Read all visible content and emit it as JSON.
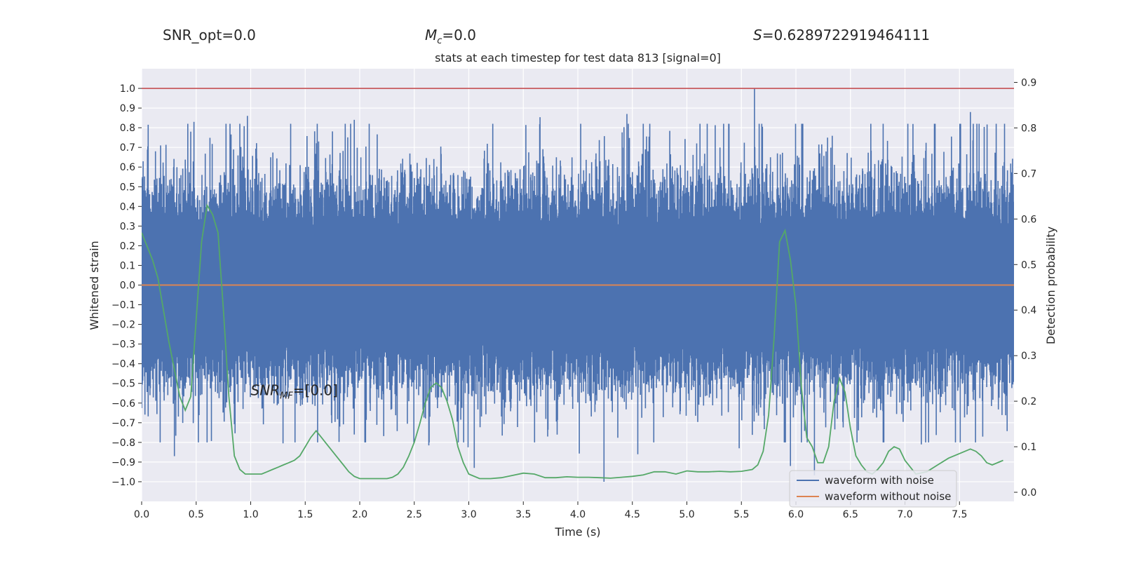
{
  "header": {
    "snr_opt": "SNR_opt=0.0",
    "mc_symbol": "M",
    "mc_sub": "c",
    "mc_value": "=0.0",
    "s_symbol": "S",
    "s_value": "=0.6289722919464111"
  },
  "colors": {
    "noisy": "#4c72b0",
    "clean": "#dd8452",
    "prob": "#55a868",
    "threshold": "#c44e52",
    "plot_bg": "#eaeaf2",
    "grid": "#ffffff"
  },
  "chart_data": {
    "type": "line",
    "title": "stats at each timestep for test data 813 [signal=0]",
    "xlabel": "Time (s)",
    "ylabel": "Whitened strain",
    "y2label": "Detection probability",
    "xlim": [
      0.0,
      8.0
    ],
    "ylim": [
      -1.1,
      1.1
    ],
    "y2lim": [
      -0.02,
      0.93
    ],
    "xticks": [
      0.0,
      0.5,
      1.0,
      1.5,
      2.0,
      2.5,
      3.0,
      3.5,
      4.0,
      4.5,
      5.0,
      5.5,
      6.0,
      6.5,
      7.0,
      7.5
    ],
    "xtick_labels": [
      "0.0",
      "0.5",
      "1.0",
      "1.5",
      "2.0",
      "2.5",
      "3.0",
      "3.5",
      "4.0",
      "4.5",
      "5.0",
      "5.5",
      "6.0",
      "6.5",
      "7.0",
      "7.5"
    ],
    "yticks": [
      1.0,
      0.9,
      0.8,
      0.7,
      0.6,
      0.5,
      0.4,
      0.3,
      0.2,
      0.1,
      0.0,
      -0.1,
      -0.2,
      -0.3,
      -0.4,
      -0.5,
      -0.6,
      -0.7,
      -0.8,
      -0.9,
      -1.0
    ],
    "ytick_labels": [
      "1.0",
      "0.9",
      "0.8",
      "0.7",
      "0.6",
      "0.5",
      "0.4",
      "0.3",
      "0.2",
      "0.1",
      "0.0",
      "−0.1",
      "−0.2",
      "−0.3",
      "−0.4",
      "−0.5",
      "−0.6",
      "−0.7",
      "−0.8",
      "−0.9",
      "−1.0"
    ],
    "y2ticks": [
      0.9,
      0.8,
      0.7,
      0.6,
      0.5,
      0.4,
      0.3,
      0.2,
      0.1,
      0.0
    ],
    "y2tick_labels": [
      "0.9",
      "0.8",
      "0.7",
      "0.6",
      "0.5",
      "0.4",
      "0.3",
      "0.2",
      "0.1",
      "0.0"
    ],
    "grid": true,
    "legend": {
      "placement": "lower right",
      "entries": [
        "waveform with noise",
        "waveform without noise"
      ]
    },
    "annotation": {
      "text_main": "SNR",
      "text_sub": "MF",
      "text_tail": "=[0.0]",
      "x": 1.0,
      "y": -0.56
    },
    "threshold": 1.0,
    "series": [
      {
        "name": "waveform with noise",
        "axis": "left",
        "kind": "noise",
        "x_start": 0.0,
        "x_end": 8.0,
        "typical_amplitude": 0.45,
        "peak_max": 1.0,
        "peak_min": -1.0,
        "notable_spikes": [
          {
            "x": 0.45,
            "y": 0.78
          },
          {
            "x": 0.48,
            "y": 0.83
          },
          {
            "x": 0.3,
            "y": -0.87
          },
          {
            "x": 0.97,
            "y": 0.86
          },
          {
            "x": 1.95,
            "y": 0.84
          },
          {
            "x": 4.45,
            "y": 0.87
          },
          {
            "x": 5.62,
            "y": 1.0
          },
          {
            "x": 4.24,
            "y": -1.0
          },
          {
            "x": 3.05,
            "y": -0.93
          },
          {
            "x": 4.55,
            "y": -0.86
          },
          {
            "x": 6.8,
            "y": 0.82
          },
          {
            "x": 7.6,
            "y": 0.88
          },
          {
            "x": 5.95,
            "y": -0.92
          },
          {
            "x": 7.15,
            "y": -0.81
          },
          {
            "x": 5.48,
            "y": -0.83
          }
        ]
      },
      {
        "name": "waveform without noise",
        "axis": "left",
        "kind": "line",
        "x": [
          0.0,
          8.0
        ],
        "y": [
          0.0,
          0.0
        ]
      },
      {
        "name": "Detection probability",
        "axis": "right",
        "kind": "line",
        "x": [
          0.0,
          0.05,
          0.1,
          0.15,
          0.2,
          0.25,
          0.3,
          0.35,
          0.4,
          0.45,
          0.5,
          0.55,
          0.6,
          0.65,
          0.7,
          0.75,
          0.8,
          0.85,
          0.9,
          0.95,
          1.0,
          1.05,
          1.1,
          1.15,
          1.2,
          1.25,
          1.3,
          1.35,
          1.4,
          1.45,
          1.5,
          1.55,
          1.6,
          1.65,
          1.7,
          1.75,
          1.8,
          1.85,
          1.9,
          1.95,
          2.0,
          2.05,
          2.1,
          2.15,
          2.2,
          2.25,
          2.3,
          2.35,
          2.4,
          2.45,
          2.5,
          2.55,
          2.6,
          2.65,
          2.7,
          2.75,
          2.8,
          2.85,
          2.9,
          2.95,
          3.0,
          3.1,
          3.2,
          3.3,
          3.4,
          3.5,
          3.6,
          3.7,
          3.8,
          3.9,
          4.0,
          4.1,
          4.2,
          4.3,
          4.4,
          4.5,
          4.6,
          4.7,
          4.8,
          4.9,
          5.0,
          5.1,
          5.2,
          5.3,
          5.4,
          5.5,
          5.6,
          5.65,
          5.7,
          5.75,
          5.8,
          5.85,
          5.9,
          5.95,
          6.0,
          6.05,
          6.1,
          6.15,
          6.2,
          6.25,
          6.3,
          6.35,
          6.4,
          6.45,
          6.5,
          6.55,
          6.6,
          6.65,
          6.7,
          6.75,
          6.8,
          6.85,
          6.9,
          6.95,
          7.0,
          7.05,
          7.1,
          7.2,
          7.3,
          7.4,
          7.5,
          7.6,
          7.65,
          7.7,
          7.75,
          7.8,
          7.9
        ],
        "y": [
          0.57,
          0.54,
          0.51,
          0.47,
          0.4,
          0.33,
          0.27,
          0.21,
          0.18,
          0.21,
          0.38,
          0.55,
          0.63,
          0.61,
          0.57,
          0.4,
          0.21,
          0.08,
          0.05,
          0.04,
          0.04,
          0.04,
          0.04,
          0.045,
          0.05,
          0.055,
          0.06,
          0.065,
          0.07,
          0.08,
          0.1,
          0.12,
          0.135,
          0.12,
          0.105,
          0.09,
          0.075,
          0.06,
          0.045,
          0.035,
          0.03,
          0.03,
          0.03,
          0.03,
          0.03,
          0.03,
          0.033,
          0.04,
          0.055,
          0.08,
          0.11,
          0.15,
          0.195,
          0.23,
          0.24,
          0.23,
          0.2,
          0.16,
          0.1,
          0.065,
          0.04,
          0.03,
          0.03,
          0.032,
          0.037,
          0.042,
          0.04,
          0.032,
          0.032,
          0.034,
          0.033,
          0.033,
          0.032,
          0.031,
          0.033,
          0.035,
          0.038,
          0.045,
          0.045,
          0.04,
          0.047,
          0.045,
          0.045,
          0.046,
          0.045,
          0.046,
          0.05,
          0.06,
          0.09,
          0.17,
          0.34,
          0.55,
          0.575,
          0.51,
          0.41,
          0.23,
          0.12,
          0.1,
          0.065,
          0.065,
          0.1,
          0.2,
          0.25,
          0.22,
          0.14,
          0.08,
          0.06,
          0.045,
          0.04,
          0.05,
          0.065,
          0.09,
          0.1,
          0.095,
          0.07,
          0.055,
          0.04,
          0.045,
          0.06,
          0.075,
          0.085,
          0.095,
          0.09,
          0.08,
          0.065,
          0.06,
          0.07
        ]
      }
    ]
  }
}
